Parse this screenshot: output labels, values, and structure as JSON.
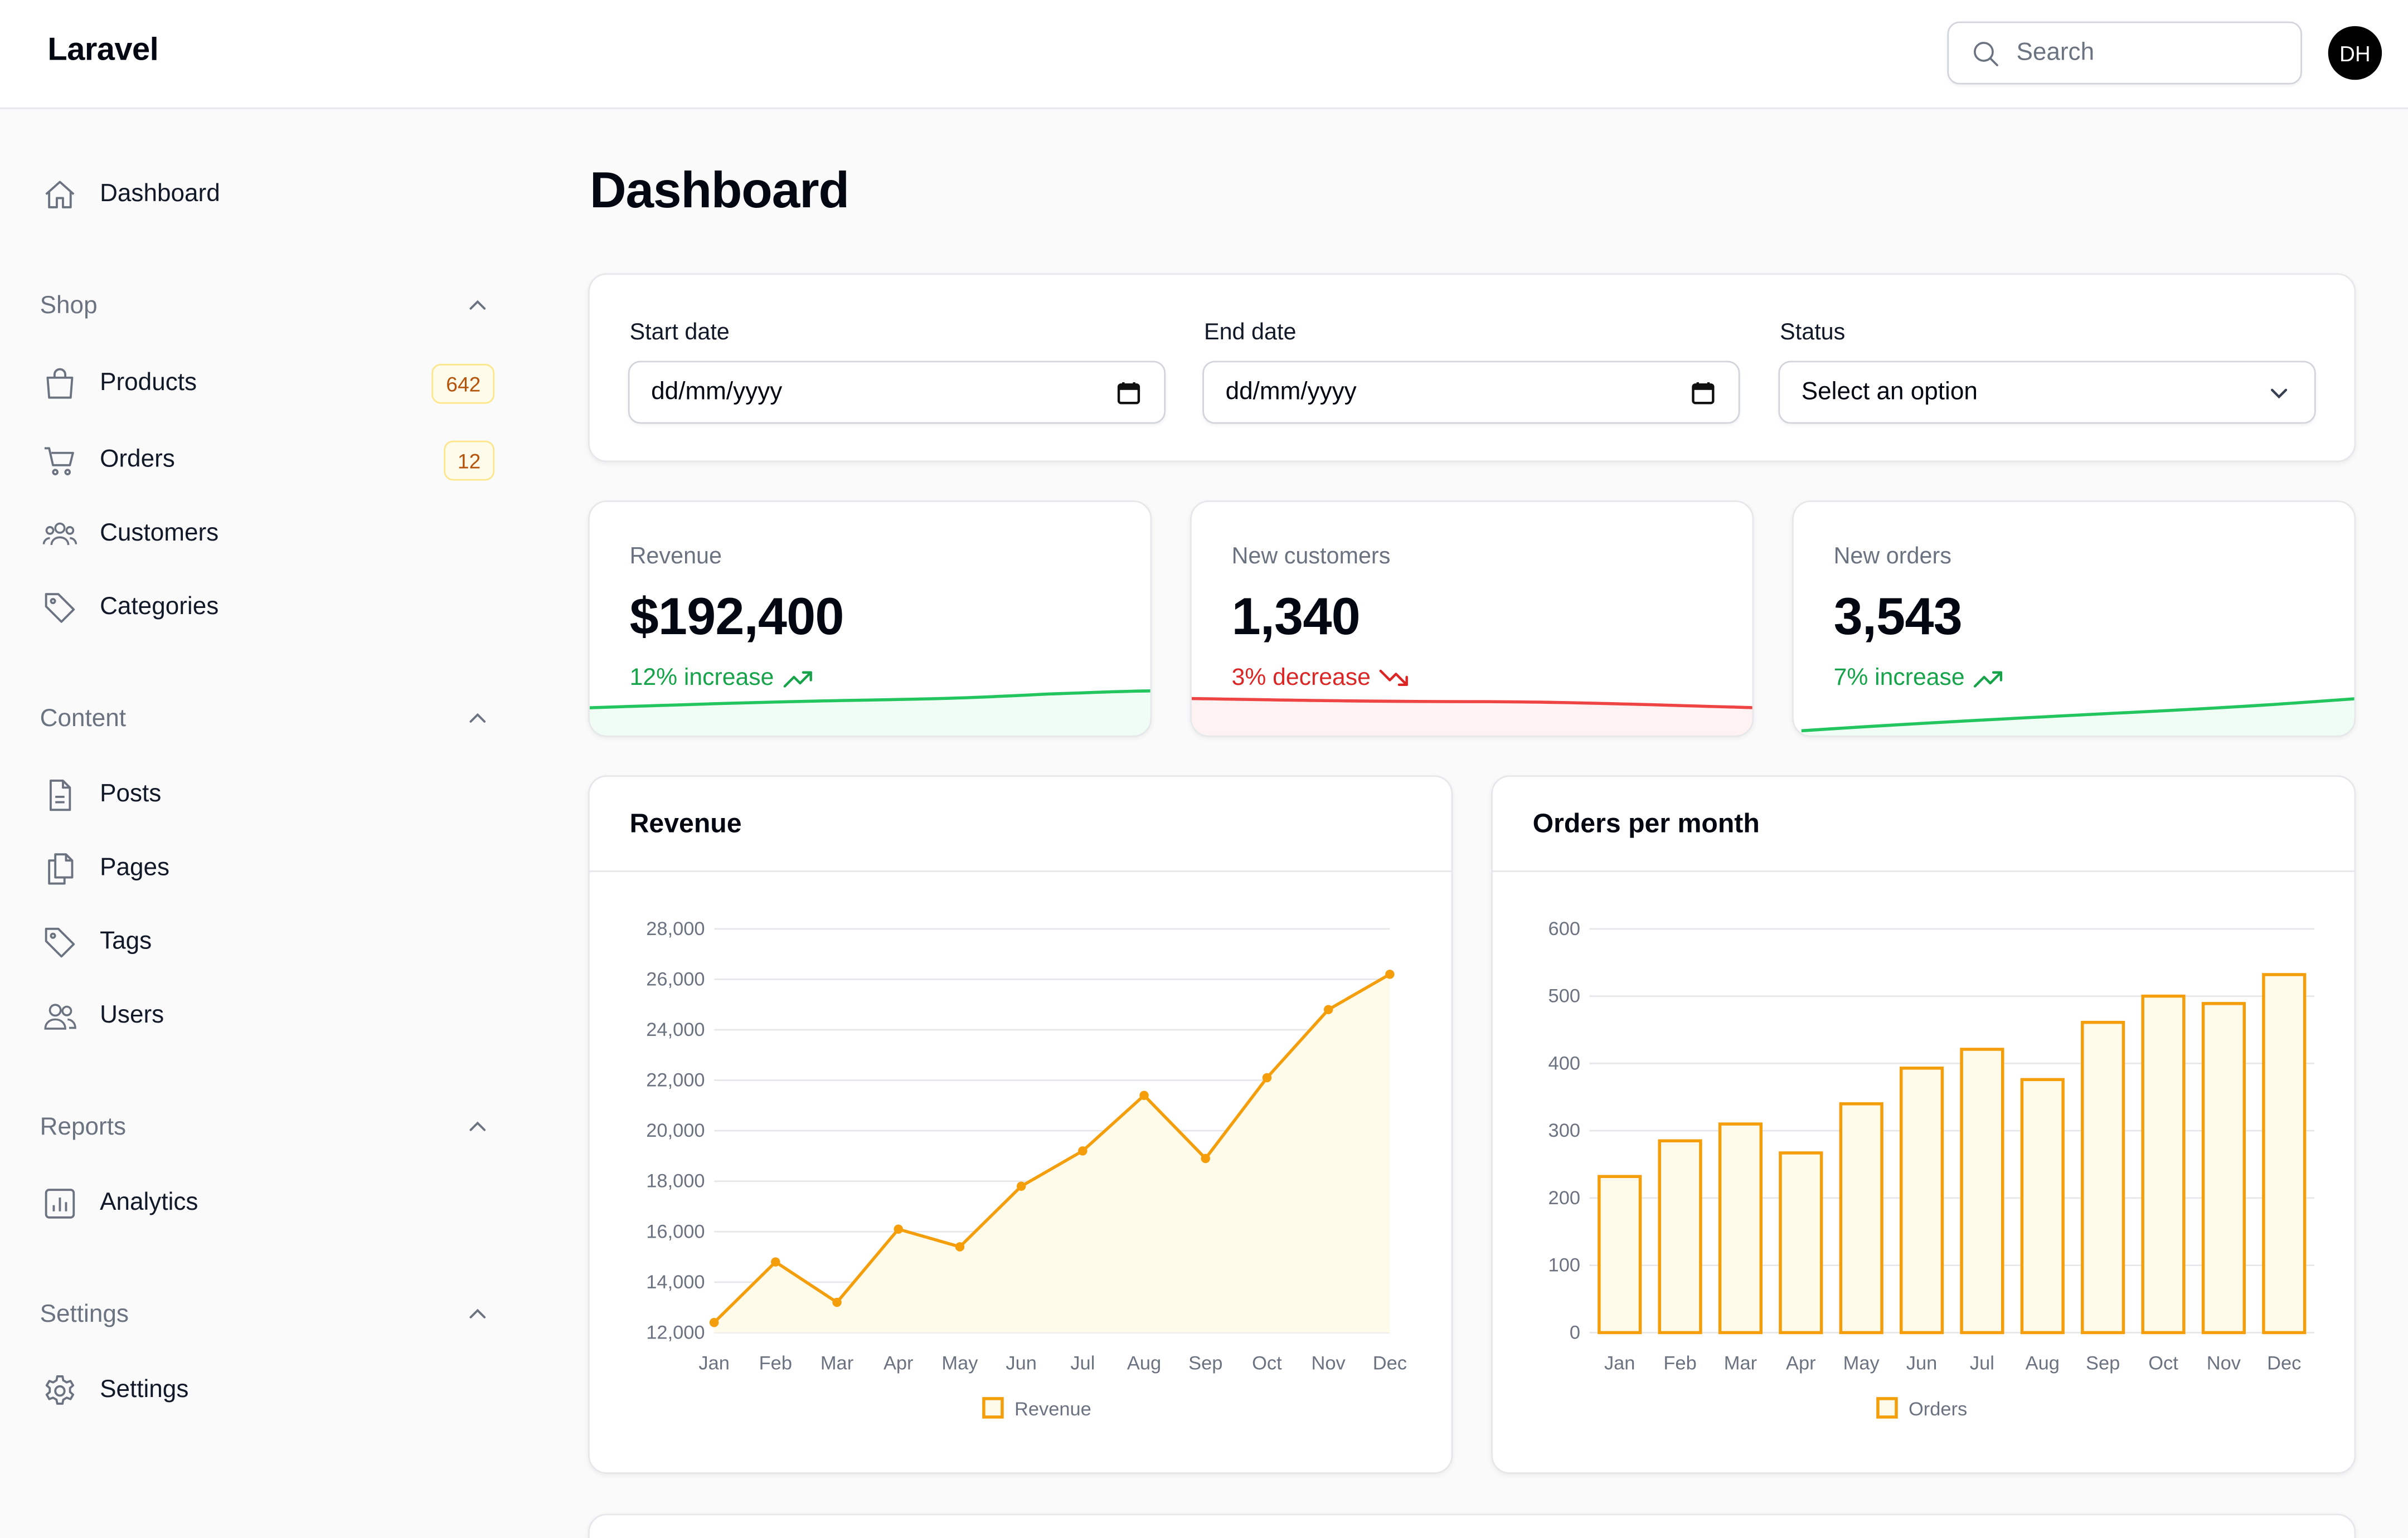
{
  "app": {
    "brand": "Laravel"
  },
  "header": {
    "search_placeholder": "Search",
    "avatar_initials": "DH"
  },
  "sidebar": {
    "top": {
      "label": "Dashboard",
      "icon": "home-icon"
    },
    "groups": [
      {
        "label": "Shop",
        "items": [
          {
            "label": "Products",
            "icon": "shopping-bag-icon",
            "badge": "642"
          },
          {
            "label": "Orders",
            "icon": "shopping-cart-icon",
            "badge": "12"
          },
          {
            "label": "Customers",
            "icon": "user-group-icon"
          },
          {
            "label": "Categories",
            "icon": "tag-icon"
          }
        ]
      },
      {
        "label": "Content",
        "items": [
          {
            "label": "Posts",
            "icon": "document-text-icon"
          },
          {
            "label": "Pages",
            "icon": "document-duplicate-icon"
          },
          {
            "label": "Tags",
            "icon": "tag-icon"
          },
          {
            "label": "Users",
            "icon": "users-icon"
          }
        ]
      },
      {
        "label": "Reports",
        "items": [
          {
            "label": "Analytics",
            "icon": "chart-bar-icon"
          }
        ]
      },
      {
        "label": "Settings",
        "items": [
          {
            "label": "Settings",
            "icon": "cog-icon"
          }
        ]
      }
    ]
  },
  "page": {
    "title": "Dashboard"
  },
  "filters": {
    "start_label": "Start date",
    "start_value": "dd/mm/yyyy",
    "end_label": "End date",
    "end_value": "dd/mm/yyyy",
    "status_label": "Status",
    "status_value": "Select an option"
  },
  "stats": [
    {
      "label": "Revenue",
      "value": "$192,400",
      "delta": "12% increase",
      "trend": "up",
      "color": "#16a34a"
    },
    {
      "label": "New customers",
      "value": "1,340",
      "delta": "3% decrease",
      "trend": "down",
      "color": "#dc2626"
    },
    {
      "label": "New orders",
      "value": "3,543",
      "delta": "7% increase",
      "trend": "up",
      "color": "#16a34a"
    }
  ],
  "colors": {
    "accent": "#f59e0b",
    "accent_fill": "#fffbeb",
    "up": "#16a34a",
    "down": "#dc2626"
  },
  "chart_data": [
    {
      "type": "line",
      "title": "Revenue",
      "categories": [
        "Jan",
        "Feb",
        "Mar",
        "Apr",
        "May",
        "Jun",
        "Jul",
        "Aug",
        "Sep",
        "Oct",
        "Nov",
        "Dec"
      ],
      "series": [
        {
          "name": "Revenue",
          "values": [
            12400,
            14800,
            13200,
            16100,
            15400,
            17800,
            19200,
            21400,
            18900,
            22100,
            24800,
            26200
          ]
        }
      ],
      "ylim": [
        12000,
        28000
      ],
      "yticks": [
        12000,
        14000,
        16000,
        18000,
        20000,
        22000,
        24000,
        26000,
        28000
      ],
      "ytick_labels": [
        "12,000",
        "14,000",
        "16,000",
        "18,000",
        "20,000",
        "22,000",
        "24,000",
        "26,000",
        "28,000"
      ],
      "legend": "bottom",
      "grid": true,
      "fill": true
    },
    {
      "type": "bar",
      "title": "Orders per month",
      "categories": [
        "Jan",
        "Feb",
        "Mar",
        "Apr",
        "May",
        "Jun",
        "Jul",
        "Aug",
        "Sep",
        "Oct",
        "Nov",
        "Dec"
      ],
      "series": [
        {
          "name": "Orders",
          "values": [
            232,
            285,
            310,
            267,
            340,
            393,
            421,
            376,
            461,
            500,
            489,
            532
          ]
        }
      ],
      "ylim": [
        0,
        600
      ],
      "yticks": [
        0,
        100,
        200,
        300,
        400,
        500,
        600
      ],
      "ytick_labels": [
        "0",
        "100",
        "200",
        "300",
        "400",
        "500",
        "600"
      ],
      "legend": "bottom",
      "grid": true
    }
  ]
}
